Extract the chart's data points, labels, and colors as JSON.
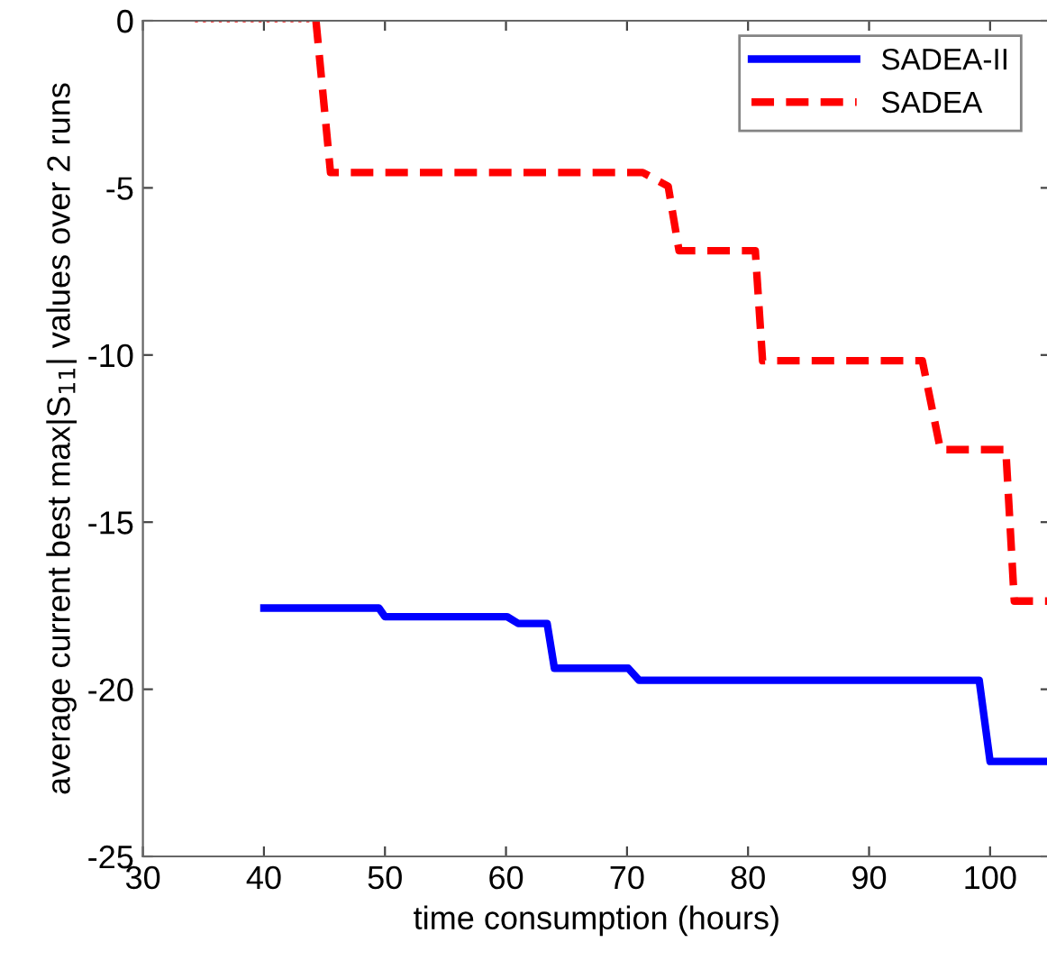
{
  "chart_data": {
    "type": "line",
    "xlabel": "time consumption (hours)",
    "ylabel": "average current best max|S$_{11}$| values over 2 runs",
    "xlim": [
      30,
      105
    ],
    "ylim": [
      -25,
      0
    ],
    "xticks": [
      30,
      40,
      50,
      60,
      70,
      80,
      90,
      100
    ],
    "yticks": [
      -25,
      -20,
      -15,
      -10,
      -5,
      0
    ],
    "legend": "top right",
    "grid": false,
    "line_style": "solid",
    "series": [
      {
        "name": "SADEA-II",
        "color": "#0000ff",
        "x": [
          40,
          49.5,
          50,
          60.1,
          61,
          63.4,
          64,
          70.1,
          71,
          99.1,
          100,
          104.7
        ],
        "values": [
          -17.57,
          -17.57,
          -17.83,
          -17.83,
          -18.03,
          -18.03,
          -19.37,
          -19.37,
          -19.73,
          -19.73,
          -22.16,
          -22.16
        ]
      },
      {
        "name": "SADEA",
        "color": "#ff0000",
        "line_style": "dashed",
        "x": [
          44.3,
          45.5,
          71.3,
          73.4,
          74.3,
          80.6,
          81.2,
          94.4,
          95.9,
          101.3,
          102.0,
          104.7
        ],
        "values": [
          0,
          -4.54,
          -4.54,
          -4.95,
          -6.88,
          -6.88,
          -10.17,
          -10.17,
          -12.83,
          -12.83,
          -17.36,
          -17.36
        ]
      },
      {
        "color": "#ff0000",
        "line_style": "dotted",
        "x": [
          34.3,
          44.3
        ],
        "values": [
          0,
          0
        ]
      }
    ]
  }
}
